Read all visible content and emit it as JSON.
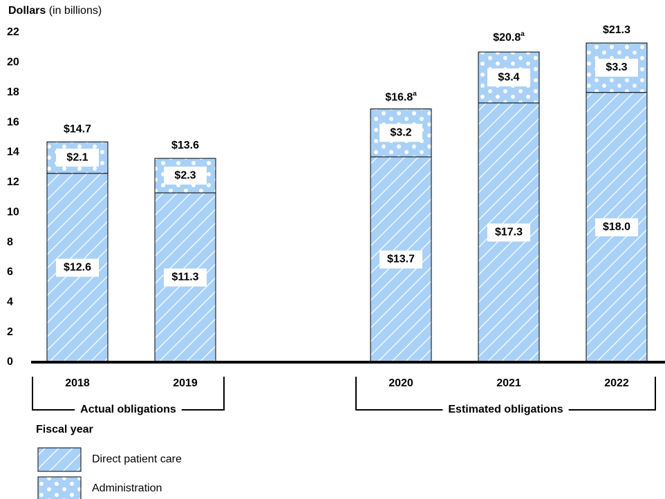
{
  "chart_data": {
    "type": "stacked_bar",
    "y_label": "Dollars",
    "y_label_unit": "(in billions)",
    "x_label": "Fiscal year",
    "categories": [
      "2018",
      "2019",
      "2020",
      "2021",
      "2022"
    ],
    "groups": [
      {
        "label": "Actual obligations",
        "categories": [
          0,
          1
        ]
      },
      {
        "label": "Estimated obligations",
        "categories": [
          2,
          3,
          4
        ]
      }
    ],
    "series": [
      {
        "name": "Direct patient care",
        "color": "#a9d1f7",
        "pattern": "hatch",
        "values": [
          12.6,
          11.3,
          13.7,
          17.3,
          18.0
        ],
        "value_labels": [
          "$12.6",
          "$11.3",
          "$13.7",
          "$17.3",
          "$18.0"
        ]
      },
      {
        "name": "Administration",
        "color": "#a9d1f7",
        "pattern": "dots",
        "values": [
          2.1,
          2.3,
          3.2,
          3.4,
          3.3
        ],
        "value_labels": [
          "$2.1",
          "$2.3",
          "$3.2",
          "$3.4",
          "$3.3"
        ]
      }
    ],
    "totals": [
      14.7,
      13.6,
      16.8,
      20.8,
      21.3
    ],
    "total_labels": [
      "$14.7",
      "$13.6",
      "$16.8",
      "$20.8",
      "$21.3"
    ],
    "total_notes": [
      null,
      null,
      "a",
      "a",
      null
    ],
    "ylim": [
      0,
      22
    ],
    "yticks": [
      0,
      2,
      4,
      6,
      8,
      10,
      12,
      14,
      16,
      18,
      20,
      22
    ],
    "grid": false
  }
}
